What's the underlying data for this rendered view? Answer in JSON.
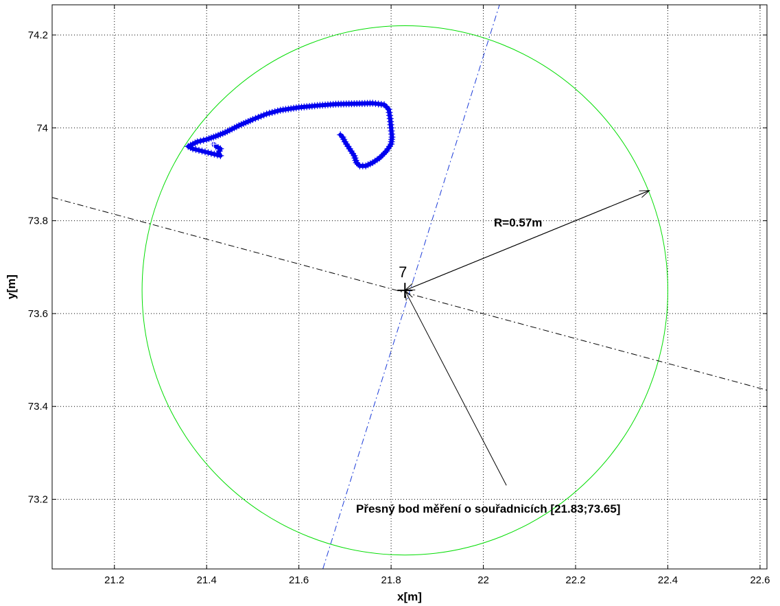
{
  "chart_data": {
    "type": "scatter",
    "title": "",
    "xlabel": "x[m]",
    "ylabel": "y[m]",
    "xlim": [
      21.065,
      22.615
    ],
    "ylim": [
      73.05,
      74.265
    ],
    "xticks": [
      21.2,
      21.4,
      21.6,
      21.8,
      22,
      22.2,
      22.4,
      22.6
    ],
    "yticks": [
      73.2,
      73.4,
      73.6,
      73.8,
      74,
      74.2
    ],
    "xtick_labels": [
      "21.2",
      "21.4",
      "21.6",
      "21.8",
      "22",
      "22.2",
      "22.4",
      "22.6"
    ],
    "ytick_labels": [
      "73.2",
      "73.4",
      "73.6",
      "73.8",
      "74",
      "74.2"
    ],
    "grid": true,
    "colors": {
      "trajectory": "#0000ee",
      "circle": "#00dd00",
      "blue_line": "#1a3ad8",
      "black_line": "#000000"
    },
    "reference_point": {
      "x": 21.83,
      "y": 73.65,
      "label": "7"
    },
    "circle": {
      "cx": 21.83,
      "cy": 73.65,
      "r": 0.57
    },
    "radius_annotation": {
      "text": "R=0.57m",
      "to": [
        22.36,
        73.865
      ]
    },
    "point_annotation": {
      "text": "Přesný bod měření o souřadnicích [21.83;73.65]",
      "from": [
        22.05,
        73.23
      ]
    },
    "black_line": {
      "p1": [
        21.065,
        73.85
      ],
      "p2": [
        22.615,
        73.435
      ]
    },
    "blue_line": {
      "p1": [
        21.652,
        73.05
      ],
      "p2": [
        22.035,
        74.265
      ]
    },
    "trajectory": [
      [
        21.415,
        73.965
      ],
      [
        21.42,
        73.96
      ],
      [
        21.43,
        73.955
      ],
      [
        21.425,
        73.945
      ],
      [
        21.43,
        73.94
      ],
      [
        21.41,
        73.945
      ],
      [
        21.39,
        73.95
      ],
      [
        21.37,
        73.955
      ],
      [
        21.36,
        73.96
      ],
      [
        21.37,
        73.965
      ],
      [
        21.38,
        73.97
      ],
      [
        21.4,
        73.975
      ],
      [
        21.42,
        73.982
      ],
      [
        21.44,
        73.99
      ],
      [
        21.47,
        74.005
      ],
      [
        21.5,
        74.018
      ],
      [
        21.53,
        74.03
      ],
      [
        21.56,
        74.038
      ],
      [
        21.6,
        74.044
      ],
      [
        21.64,
        74.048
      ],
      [
        21.68,
        74.051
      ],
      [
        21.72,
        74.052
      ],
      [
        21.76,
        74.053
      ],
      [
        21.785,
        74.05
      ],
      [
        21.795,
        74.04
      ],
      [
        21.798,
        74.02
      ],
      [
        21.8,
        74.0
      ],
      [
        21.802,
        73.98
      ],
      [
        21.8,
        73.965
      ],
      [
        21.79,
        73.95
      ],
      [
        21.775,
        73.935
      ],
      [
        21.76,
        73.925
      ],
      [
        21.745,
        73.918
      ],
      [
        21.732,
        73.918
      ],
      [
        21.725,
        73.925
      ],
      [
        21.72,
        73.94
      ],
      [
        21.71,
        73.955
      ],
      [
        21.7,
        73.97
      ],
      [
        21.695,
        73.98
      ],
      [
        21.69,
        73.985
      ]
    ]
  }
}
